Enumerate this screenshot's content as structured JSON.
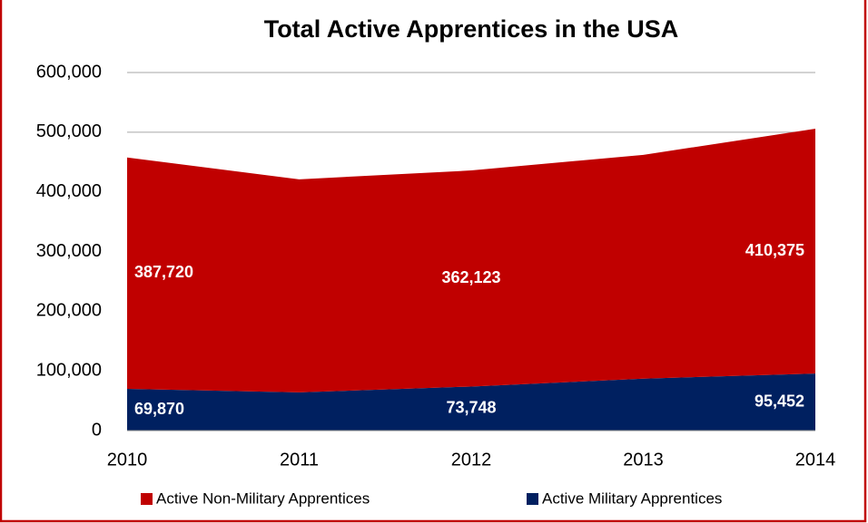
{
  "chart_data": {
    "type": "stacked_area",
    "title": "Total Active Apprentices in the USA",
    "categories": [
      "2010",
      "2011",
      "2012",
      "2013",
      "2014"
    ],
    "series": [
      {
        "name": "Active Non-Military Apprentices",
        "color": "#c00000",
        "values": [
          387720,
          357000,
          362123,
          375000,
          410375
        ],
        "value_labels": [
          "387,720",
          null,
          "362,123",
          null,
          "410,375"
        ]
      },
      {
        "name": "Active Military Apprentices",
        "color": "#002060",
        "values": [
          69870,
          64000,
          73748,
          87000,
          95452
        ],
        "value_labels": [
          "69,870",
          null,
          "73,748",
          null,
          "95,452"
        ]
      }
    ],
    "ylim": [
      0,
      600000
    ],
    "yticks": [
      0,
      {
        "value": 100000,
        "label": "100,000"
      },
      {
        "value": 200000,
        "label": "200,000"
      },
      {
        "value": 300000,
        "label": "300,000"
      },
      {
        "value": 400000,
        "label": "400,000"
      },
      {
        "value": 500000,
        "label": "500,000"
      },
      {
        "value": 600000,
        "label": "600,000"
      }
    ],
    "grid": true,
    "legend": "bottom"
  }
}
